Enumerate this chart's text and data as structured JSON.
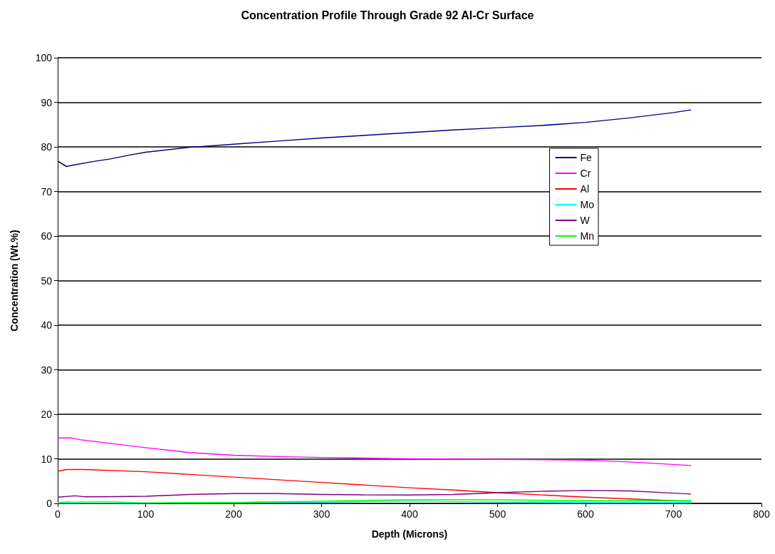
{
  "chart_data": {
    "type": "line",
    "title": "Concentration Profile Through Grade 92 Al-Cr Surface",
    "xlabel": "Depth (Microns)",
    "ylabel": "Concentration (Wt.%)",
    "xlim": [
      0,
      800
    ],
    "xticks": [
      0,
      100,
      200,
      300,
      400,
      500,
      600,
      700,
      800
    ],
    "ylim": [
      0,
      100
    ],
    "yticks": [
      0,
      10,
      20,
      30,
      40,
      50,
      60,
      70,
      80,
      90,
      100
    ],
    "grid": "y",
    "legend": "right",
    "marker": "none",
    "line_style": "solid",
    "series": [
      {
        "name": "Fe",
        "color": "#000080",
        "x": [
          0,
          10,
          20,
          40,
          60,
          80,
          100,
          150,
          200,
          250,
          300,
          350,
          400,
          450,
          500,
          550,
          600,
          650,
          700,
          720
        ],
        "values": [
          76.8,
          75.6,
          76.0,
          76.7,
          77.3,
          78.1,
          78.8,
          79.9,
          80.6,
          81.3,
          82.0,
          82.6,
          83.2,
          83.8,
          84.3,
          84.8,
          85.5,
          86.5,
          87.7,
          88.3
        ]
      },
      {
        "name": "Cr",
        "color": "#ff00ff",
        "x": [
          0,
          15,
          25,
          50,
          100,
          150,
          200,
          250,
          300,
          400,
          500,
          600,
          650,
          720
        ],
        "values": [
          14.7,
          14.7,
          14.3,
          13.7,
          12.5,
          11.4,
          10.8,
          10.5,
          10.3,
          10.0,
          9.9,
          9.7,
          9.3,
          8.5
        ]
      },
      {
        "name": "Al",
        "color": "#ff0000",
        "x": [
          0,
          10,
          30,
          100,
          150,
          200,
          250,
          300,
          350,
          400,
          450,
          500,
          550,
          600,
          650,
          700,
          720
        ],
        "values": [
          7.2,
          7.6,
          7.6,
          7.1,
          6.5,
          5.9,
          5.3,
          4.7,
          4.1,
          3.5,
          3.0,
          2.4,
          1.9,
          1.4,
          1.0,
          0.6,
          0.5
        ]
      },
      {
        "name": "Mo",
        "color": "#00ffff",
        "x": [
          0,
          10,
          20,
          40,
          60,
          100,
          200,
          300,
          400,
          500,
          600,
          720
        ],
        "values": [
          0.1,
          0.4,
          0.3,
          0.4,
          0.4,
          0.1,
          0.2,
          0.3,
          0.5,
          0.3,
          0.2,
          0.2
        ]
      },
      {
        "name": "W",
        "color": "#800080",
        "x": [
          0,
          20,
          30,
          50,
          100,
          150,
          200,
          250,
          300,
          350,
          400,
          450,
          500,
          550,
          600,
          650,
          700,
          720
        ],
        "values": [
          1.4,
          1.7,
          1.5,
          1.5,
          1.6,
          2.0,
          2.2,
          2.2,
          2.0,
          1.9,
          1.9,
          2.0,
          2.4,
          2.7,
          2.9,
          2.8,
          2.3,
          2.1
        ]
      },
      {
        "name": "Mn",
        "color": "#00ff00",
        "x": [
          0,
          100,
          200,
          300,
          400,
          500,
          600,
          720
        ],
        "values": [
          0.1,
          0.1,
          0.2,
          0.5,
          0.8,
          0.8,
          0.6,
          0.6
        ]
      }
    ]
  }
}
